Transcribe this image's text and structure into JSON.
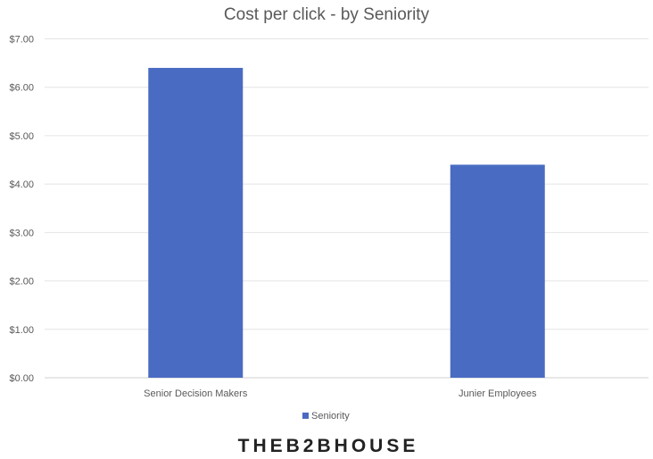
{
  "chart_data": {
    "type": "bar",
    "title": "Cost per click - by Seniority",
    "categories": [
      "Senior Decision Makers",
      "Junier Employees"
    ],
    "series": [
      {
        "name": "Seniority",
        "values": [
          6.4,
          4.4
        ],
        "color": "#4a6bc2"
      }
    ],
    "ylim": [
      0,
      7
    ],
    "yticks": [
      "$0.00",
      "$1.00",
      "$2.00",
      "$3.00",
      "$4.00",
      "$5.00",
      "$6.00",
      "$7.00"
    ],
    "grid": true,
    "legend_position": "bottom",
    "xlabel": "",
    "ylabel": ""
  },
  "watermark": "THEB2BHOUSE"
}
